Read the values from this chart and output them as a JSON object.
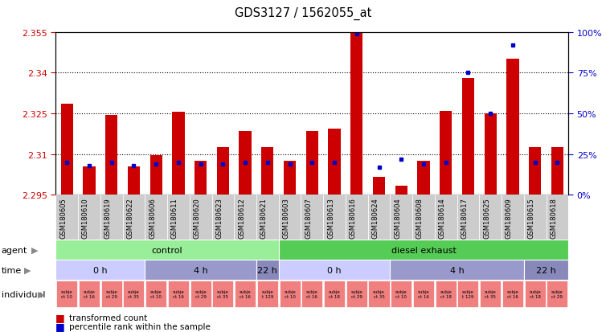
{
  "title": "GDS3127 / 1562055_at",
  "samples": [
    "GSM180605",
    "GSM180610",
    "GSM180619",
    "GSM180622",
    "GSM180606",
    "GSM180611",
    "GSM180620",
    "GSM180623",
    "GSM180612",
    "GSM180621",
    "GSM180603",
    "GSM180607",
    "GSM180613",
    "GSM180616",
    "GSM180624",
    "GSM180604",
    "GSM180608",
    "GSM180614",
    "GSM180617",
    "GSM180625",
    "GSM180609",
    "GSM180615",
    "GSM180618"
  ],
  "red_values": [
    2.3285,
    2.3055,
    2.3245,
    2.3055,
    2.3095,
    2.3255,
    2.3075,
    2.3125,
    2.3185,
    2.3125,
    2.3075,
    2.3185,
    2.3195,
    2.358,
    2.3015,
    2.2985,
    2.3075,
    2.326,
    2.338,
    2.325,
    2.345,
    2.3125,
    2.3125
  ],
  "blue_pct": [
    20,
    18,
    20,
    18,
    19,
    20,
    19,
    19,
    20,
    20,
    19,
    20,
    20,
    99,
    17,
    22,
    19,
    20,
    75,
    50,
    92,
    20,
    20
  ],
  "y_min": 2.295,
  "y_max": 2.355,
  "y_ticks_left": [
    2.295,
    2.31,
    2.325,
    2.34,
    2.355
  ],
  "y_ticks_right": [
    0,
    25,
    50,
    75,
    100
  ],
  "bar_color": "#CC0000",
  "dot_color": "#0000CC",
  "agent_groups": [
    {
      "label": "control",
      "start": 0,
      "end": 9,
      "color": "#99EE99"
    },
    {
      "label": "diesel exhaust",
      "start": 10,
      "end": 22,
      "color": "#55CC55"
    }
  ],
  "time_groups": [
    {
      "label": "0 h",
      "start": 0,
      "end": 3,
      "color": "#CCCCFF"
    },
    {
      "label": "4 h",
      "start": 4,
      "end": 8,
      "color": "#9999CC"
    },
    {
      "label": "22 h",
      "start": 9,
      "end": 9,
      "color": "#8888BB"
    },
    {
      "label": "0 h",
      "start": 10,
      "end": 14,
      "color": "#CCCCFF"
    },
    {
      "label": "4 h",
      "start": 15,
      "end": 20,
      "color": "#9999CC"
    },
    {
      "label": "22 h",
      "start": 21,
      "end": 22,
      "color": "#8888BB"
    }
  ],
  "individual_labels": [
    "subje\nct 10",
    "subje\nct 16",
    "subje\nct 29",
    "subje\nct 35",
    "subje\nct 10",
    "subje\nct 16",
    "subje\nct 29",
    "subje\nct 35",
    "subje\nct 16",
    "subje\nt 129",
    "subje\nct 10",
    "subje\nct 16",
    "subje\nct 18",
    "subje\nct 29",
    "subje\nct 35",
    "subje\nct 10",
    "subje\nct 16",
    "subje\nct 18",
    "subje\nt 129",
    "subje\nct 35",
    "subje\nct 16",
    "subje\nct 18",
    "subje\nct 29"
  ],
  "indiv_color": "#F08080",
  "bg_color": "#FFFFFF",
  "xticklabel_bg": "#CCCCCC",
  "grid_dotted": [
    2.31,
    2.325,
    2.34
  ]
}
